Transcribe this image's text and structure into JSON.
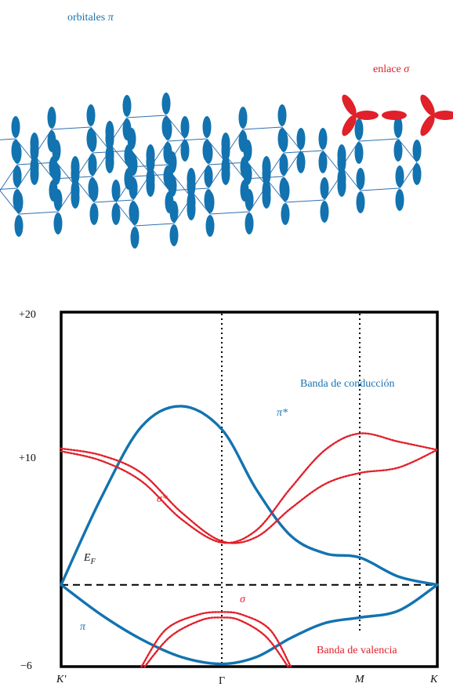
{
  "lattice": {
    "pi_label": "orbitales",
    "pi_symbol": "π",
    "sigma_label": "enlace",
    "sigma_symbol": "σ"
  },
  "colors": {
    "pi": "#1273b0",
    "sigma": "#e0202a",
    "axis": "#000000"
  },
  "chart_data": {
    "type": "line",
    "y_tick_labels": [
      "+20",
      "+10",
      "−6"
    ],
    "ylim": [
      -6,
      20
    ],
    "x_tick_labels": [
      "K'",
      "Γ",
      "M",
      "K"
    ],
    "annotations": {
      "conduction": "Banda de conducción",
      "valence": "Banda de valencia",
      "pi_star": "π*",
      "pi": "π",
      "sigma_star": "σ*",
      "sigma": "σ",
      "fermi": "E",
      "fermi_sub": "F"
    },
    "fermi_level": 0,
    "series": [
      {
        "name": "π*",
        "style": "solid",
        "color": "#1273b0",
        "points": [
          [
            0,
            0
          ],
          [
            0.25,
            6.4
          ],
          [
            0.5,
            11.6
          ],
          [
            0.75,
            13.1
          ],
          [
            1.0,
            11.4
          ],
          [
            1.25,
            7.0
          ],
          [
            1.5,
            3.6
          ],
          [
            1.75,
            2.3
          ],
          [
            2.0,
            2.0
          ],
          [
            2.25,
            0.6
          ],
          [
            2.5,
            0
          ]
        ]
      },
      {
        "name": "π",
        "style": "solid",
        "color": "#1273b0",
        "points": [
          [
            0,
            0
          ],
          [
            0.25,
            -2.2
          ],
          [
            0.5,
            -4.0
          ],
          [
            0.75,
            -5.3
          ],
          [
            1.0,
            -5.8
          ],
          [
            1.25,
            -5.3
          ],
          [
            1.5,
            -3.9
          ],
          [
            1.75,
            -2.8
          ],
          [
            2.0,
            -2.4
          ],
          [
            2.25,
            -1.9
          ],
          [
            2.5,
            0
          ]
        ]
      },
      {
        "name": "σ* a",
        "style": "dotted",
        "color": "#e0202a",
        "points": [
          [
            0,
            10.0
          ],
          [
            0.25,
            9.5
          ],
          [
            0.5,
            8.2
          ],
          [
            0.75,
            5.3
          ],
          [
            1.0,
            3.2
          ],
          [
            1.25,
            3.5
          ],
          [
            1.5,
            5.6
          ],
          [
            1.75,
            7.4
          ],
          [
            2.0,
            8.2
          ],
          [
            2.25,
            8.6
          ],
          [
            2.5,
            9.9
          ]
        ]
      },
      {
        "name": "σ* b",
        "style": "dotted",
        "color": "#e0202a",
        "points": [
          [
            0,
            9.8
          ],
          [
            0.25,
            9.1
          ],
          [
            0.5,
            7.6
          ],
          [
            0.75,
            4.8
          ],
          [
            1.0,
            3.1
          ],
          [
            1.25,
            4.0
          ],
          [
            1.5,
            7.1
          ],
          [
            1.75,
            9.9
          ],
          [
            2.0,
            11.1
          ],
          [
            2.25,
            10.5
          ],
          [
            2.5,
            9.9
          ]
        ]
      },
      {
        "name": "σ a",
        "style": "dotted",
        "color": "#e0202a",
        "points": [
          [
            0.5,
            -6.0
          ],
          [
            0.65,
            -3.3
          ],
          [
            0.85,
            -2.2
          ],
          [
            1.0,
            -2.0
          ],
          [
            1.15,
            -2.2
          ],
          [
            1.35,
            -3.3
          ],
          [
            1.5,
            -6.0
          ]
        ]
      },
      {
        "name": "σ b",
        "style": "dotted",
        "color": "#e0202a",
        "points": [
          [
            0.52,
            -6.0
          ],
          [
            0.68,
            -3.8
          ],
          [
            0.87,
            -2.6
          ],
          [
            1.0,
            -2.4
          ],
          [
            1.13,
            -2.6
          ],
          [
            1.32,
            -3.8
          ],
          [
            1.48,
            -6.0
          ]
        ]
      }
    ]
  }
}
